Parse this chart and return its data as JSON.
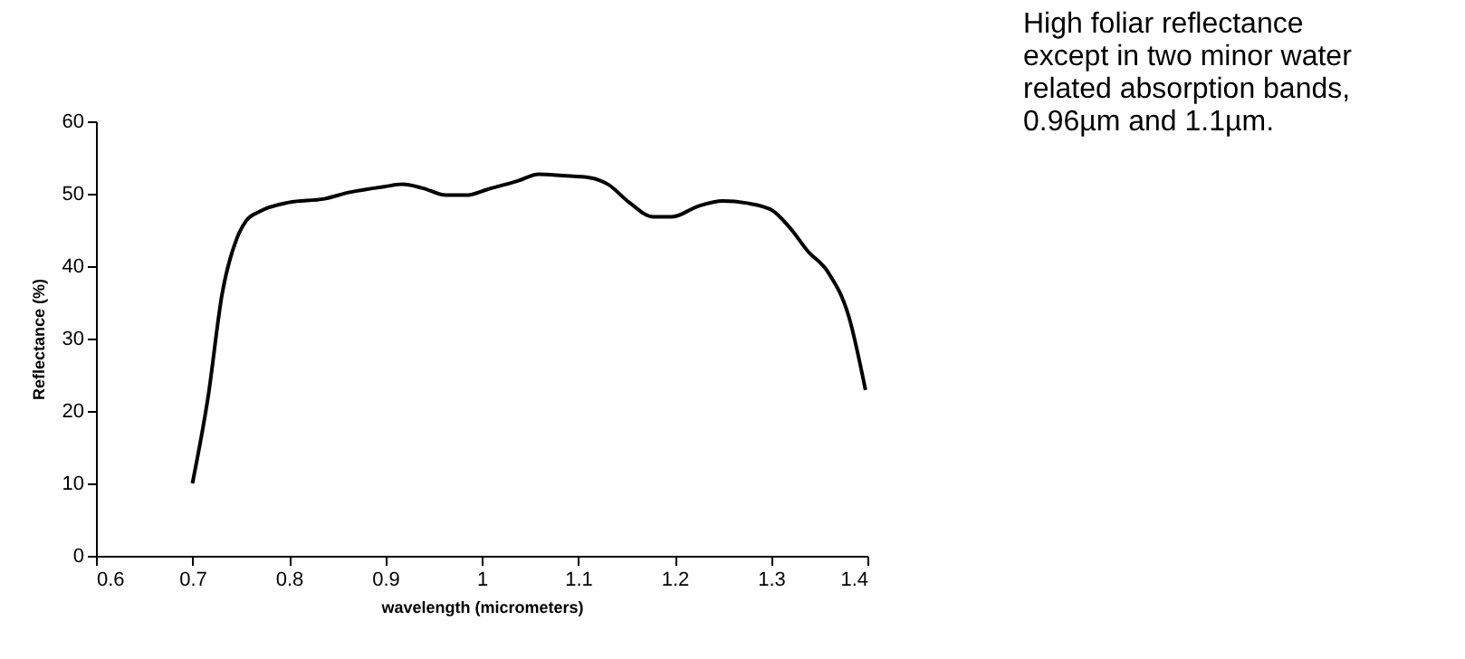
{
  "chart_data": {
    "type": "line",
    "xlabel": "wavelength (micrometers)",
    "ylabel": "Reflectance (%)",
    "x": [
      0.7,
      0.716,
      0.731,
      0.746,
      0.756,
      0.769,
      0.8,
      0.837,
      0.863,
      0.9,
      0.918,
      0.938,
      0.963,
      0.984,
      1.006,
      1.038,
      1.059,
      1.084,
      1.113,
      1.131,
      1.153,
      1.178,
      1.197,
      1.225,
      1.25,
      1.275,
      1.3,
      1.319,
      1.338,
      1.359,
      1.381,
      1.398
    ],
    "series": [
      {
        "color": "#000000",
        "values": [
          10,
          21.7,
          36.3,
          43.8,
          46.3,
          47.5,
          48.8,
          49.3,
          50.2,
          51,
          51.3,
          50.8,
          49.8,
          49.8,
          50.6,
          51.8,
          52.7,
          52.5,
          52.2,
          51.3,
          48.8,
          46.8,
          46.8,
          48.3,
          49,
          48.7,
          47.8,
          45.4,
          42.1,
          39.2,
          32.9,
          22.9
        ]
      }
    ],
    "xlim": [
      0.6,
      1.4
    ],
    "xticks": [
      0.6,
      0.7,
      0.8,
      0.9,
      1,
      1.1,
      1.2,
      1.3,
      1.4
    ],
    "ylim": [
      0,
      60
    ],
    "yticks": [
      0,
      10,
      20,
      30,
      40,
      50,
      60
    ],
    "grid": false,
    "marker": "none",
    "line_style": "solid",
    "annotations": [
      "High foliar reflectance\nexcept in two minor water\nrelated absorption bands,\n0.96µm and 1.1µm."
    ]
  }
}
